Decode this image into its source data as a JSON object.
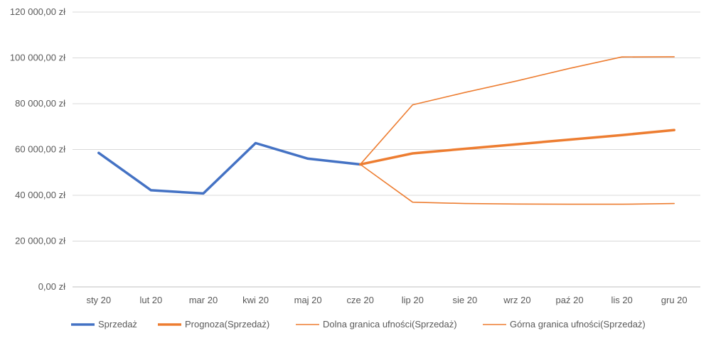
{
  "chart_data": {
    "type": "line",
    "title": "",
    "xlabel": "",
    "ylabel": "",
    "categories": [
      "sty 20",
      "lut 20",
      "mar 20",
      "kwi 20",
      "maj 20",
      "cze 20",
      "lip 20",
      "sie 20",
      "wrz 20",
      "paź 20",
      "lis 20",
      "gru 20"
    ],
    "ylim": [
      0,
      120000
    ],
    "yticks": [
      0,
      20000,
      40000,
      60000,
      80000,
      100000,
      120000
    ],
    "ytick_labels": [
      "0,00 zł",
      "20 000,00 zł",
      "40 000,00 zł",
      "60 000,00 zł",
      "80 000,00 zł",
      "100 000,00 zł",
      "120 000,00 zł"
    ],
    "grid": "horizontal",
    "legend_position": "bottom",
    "series": [
      {
        "name": "Sprzedaż",
        "color": "#4472C4",
        "width": "thick",
        "values": [
          58500,
          42200,
          40800,
          62800,
          56000,
          53500,
          null,
          null,
          null,
          null,
          null,
          null
        ]
      },
      {
        "name": "Prognoza(Sprzedaż)",
        "color": "#ED7D31",
        "width": "thick",
        "values": [
          null,
          null,
          null,
          null,
          null,
          53500,
          58300,
          60300,
          62300,
          64300,
          66300,
          68500
        ]
      },
      {
        "name": "Dolna granica ufności(Sprzedaż)",
        "color": "#ED7D31",
        "width": "thin",
        "values": [
          null,
          null,
          null,
          null,
          null,
          53500,
          37000,
          36400,
          36200,
          36100,
          36100,
          36400
        ]
      },
      {
        "name": "Górna granica ufności(Sprzedaż)",
        "color": "#ED7D31",
        "width": "thin",
        "values": [
          null,
          null,
          null,
          null,
          null,
          53500,
          79500,
          84900,
          90000,
          95400,
          100400,
          100500
        ]
      }
    ]
  }
}
